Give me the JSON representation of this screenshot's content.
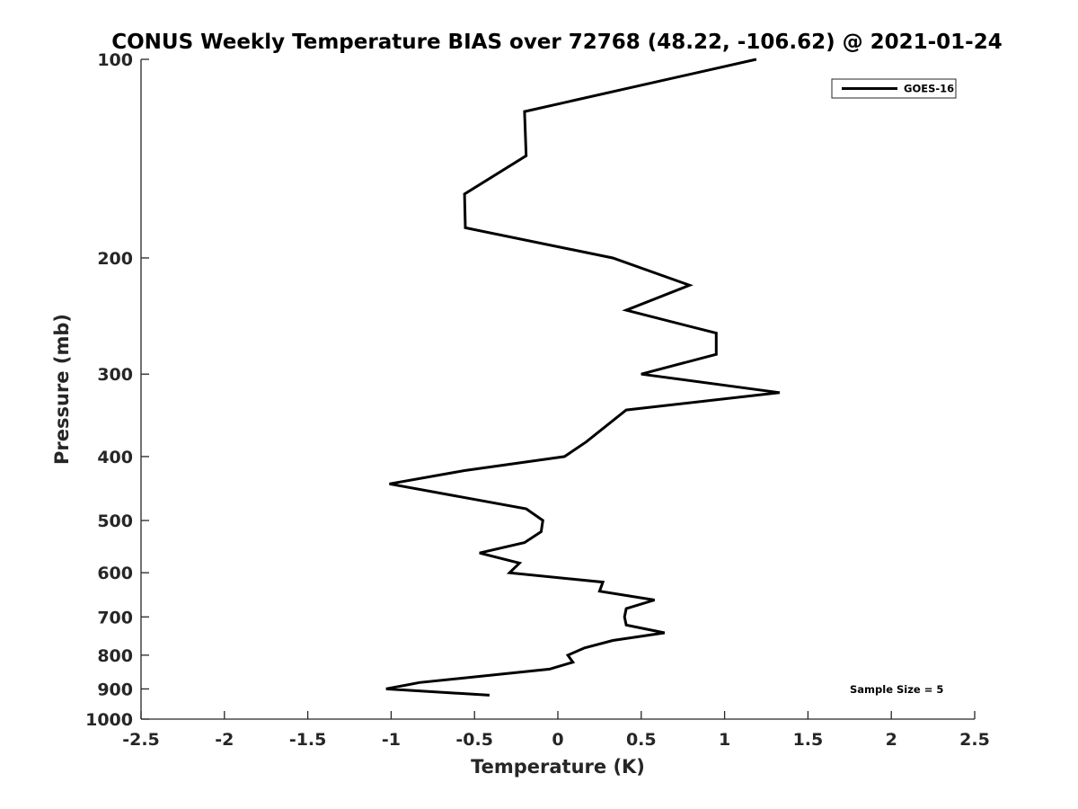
{
  "chart_data": {
    "type": "line",
    "title": "CONUS Weekly Temperature BIAS over 72768 (48.22, -106.62) @ 2021-01-24",
    "xlabel": "Temperature (K)",
    "ylabel": "Pressure (mb)",
    "xlim": [
      -2.5,
      2.5
    ],
    "ylim": [
      100,
      1000
    ],
    "yscale": "log",
    "y_reversed": true,
    "grid": false,
    "legend_position": "top-right",
    "xticks": [
      "-2.5",
      "-2",
      "-1.5",
      "-1",
      "-0.5",
      "0",
      "0.5",
      "1",
      "1.5",
      "2",
      "2.5"
    ],
    "yticks": [
      "100",
      "200",
      "300",
      "400",
      "500",
      "600",
      "700",
      "800",
      "900",
      "1000"
    ],
    "annotation": "Sample Size = 5",
    "series": [
      {
        "name": "GOES-16",
        "color": "#000000",
        "pressure": [
          100,
          120,
          140,
          160,
          180,
          200,
          220,
          240,
          260,
          280,
          300,
          320,
          340,
          380,
          400,
          420,
          440,
          480,
          500,
          520,
          540,
          560,
          580,
          600,
          620,
          640,
          660,
          680,
          700,
          720,
          740,
          760,
          780,
          800,
          820,
          840,
          880,
          900,
          920
        ],
        "temperature": [
          1.19,
          -0.2,
          -0.19,
          -0.56,
          -0.555,
          0.33,
          0.79,
          0.41,
          0.95,
          0.95,
          0.5,
          1.33,
          0.41,
          0.17,
          0.04,
          -0.56,
          -1.01,
          -0.19,
          -0.09,
          -0.1,
          -0.2,
          -0.47,
          -0.23,
          -0.29,
          0.27,
          0.25,
          0.58,
          0.41,
          0.4,
          0.41,
          0.64,
          0.33,
          0.16,
          0.06,
          0.09,
          -0.05,
          -0.83,
          -1.03,
          -0.41
        ]
      }
    ]
  }
}
